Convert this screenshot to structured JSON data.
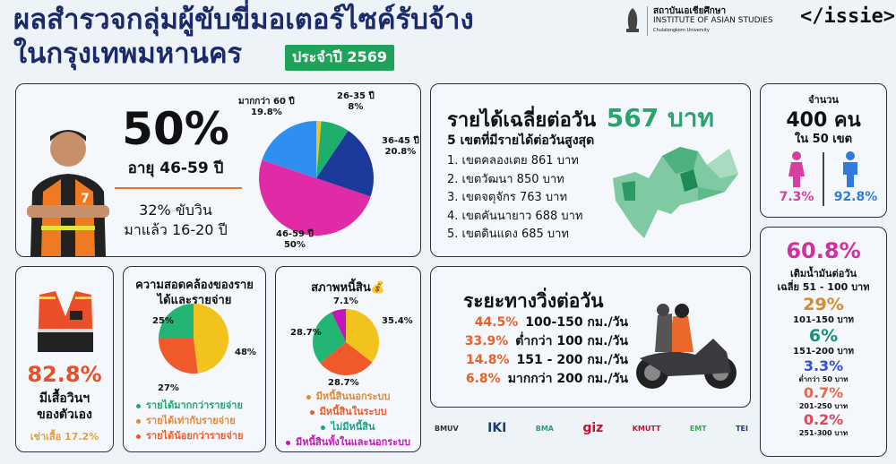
{
  "header": {
    "title_line1": "ผลสำรวจกลุ่มผู้ขับขี่มอเตอร์ไซค์รับจ้าง",
    "title_line2": "ในกรุงเทพมหานคร",
    "year_badge": "ประจำปี 2569",
    "institute_th": "สถาบันเอเชียศึกษา",
    "institute_en": "INSTITUTE OF ASIAN STUDIES",
    "institute_uni": "Chulalongkorn University",
    "brand": "</issie>"
  },
  "age_card": {
    "headline": "50%",
    "headline_sub": "อายุ 46-59 ปี",
    "experience_line1": "32% ขับวิน",
    "experience_line2": "มาแล้ว 16-20 ปี"
  },
  "income_card": {
    "title_prefix": "รายได้เฉลี่ยต่อวัน",
    "title_value": "567 บาท",
    "subtitle": "5 เขตที่มีรายได้ต่อวันสูงสุด",
    "districts": [
      "1.  เขตคลองเตย 861 บาท",
      "2.  เขตวัฒนา 850 บาท",
      "3.  เขตจตุจักร 763 บาท",
      "4.  เขตคันนายาว 688 บาท",
      "5.  เขตดินแดง 685 บาท"
    ]
  },
  "sample_card": {
    "label": "จำนวน",
    "count": "400 คน",
    "districts": "ใน 50 เขต",
    "female_pct": "7.3%",
    "male_pct": "92.8%",
    "female_color": "#d63fa0",
    "male_color": "#2f7be0"
  },
  "fuel_card": {
    "main_pct": "60.8%",
    "main_line1": "เติมน้ำมันต่อวัน",
    "main_line2": "เฉลี่ย 51 - 100 บาท",
    "items": [
      {
        "pct": "29%",
        "label": "101-150 บาท",
        "color": "#d58a2e"
      },
      {
        "pct": "6%",
        "label": "151-200 บาท",
        "color": "#18907a"
      },
      {
        "pct": "3.3%",
        "label": "ต่ำกว่า 50 บาท",
        "color": "#3552d6"
      },
      {
        "pct": "0.7%",
        "label": "201-250 บาท",
        "color": "#e8694a"
      },
      {
        "pct": "0.2%",
        "label": "251-300 บาท",
        "color": "#e04555"
      }
    ]
  },
  "vest_card": {
    "pct": "82.8%",
    "line1": "มีเสื้อวินฯ",
    "line2": "ของตัวเอง",
    "rent": "เช่าเสื้อ 17.2%"
  },
  "distance_card": {
    "title": "ระยะทางวิ่งต่อวัน",
    "rows": [
      {
        "pct": "44.5%",
        "label": "100-150 กม./วัน"
      },
      {
        "pct": "33.9%",
        "label": "ต่ำกว่า 100 กม./วัน"
      },
      {
        "pct": "14.8%",
        "label": "151 - 200 กม./วัน"
      },
      {
        "pct": "6.8%",
        "label": "มากกว่า 200 กม./วัน"
      }
    ]
  },
  "partners": [
    "BMUV",
    "IKI",
    "BMA",
    "giz",
    "KMUTT",
    "EMT",
    "TEI"
  ],
  "chart_data": [
    {
      "type": "pie",
      "title": "",
      "categories": [
        "",
        "26-35 ปี",
        "36-45 ปี",
        "46-59 ปี",
        "มากกว่า 60 ปี"
      ],
      "values": [
        1.4,
        8,
        20.8,
        50,
        19.8
      ],
      "labels": [
        "",
        "8%",
        "20.8%",
        "50%",
        "19.8%"
      ],
      "colors": [
        "#f2c31c",
        "#1fae6b",
        "#1c3a9c",
        "#e02aa6",
        "#2e8ff0"
      ]
    },
    {
      "type": "pie",
      "title": "ความสอดคล้องของรายได้และรายจ่าย",
      "categories": [
        "รายได้มากกว่ารายจ่าย",
        "รายได้เท่ากับรายจ่าย",
        "รายได้น้อยกว่ารายจ่าย"
      ],
      "values": [
        25,
        48,
        27
      ],
      "labels": [
        "25%",
        "48%",
        "27%"
      ],
      "colors": [
        "#22b573",
        "#f2c31c",
        "#f05a2a"
      ],
      "legend_colors": [
        "#22a571",
        "#e0893a",
        "#f05a2a"
      ],
      "legend": "bottom"
    },
    {
      "type": "pie",
      "title": "สภาพหนี้สิน",
      "categories": [
        "มีหนี้สินนอกระบบ",
        "มีหนี้สินในระบบ",
        "ไม่มีหนี้สิน",
        "มีหนี้สินทั้งในและนอกระบบ"
      ],
      "values": [
        35.4,
        28.7,
        28.7,
        7.1
      ],
      "labels": [
        "35.4%",
        "28.7%",
        "28.7%",
        "7.1%"
      ],
      "colors": [
        "#f2c31c",
        "#f05a2a",
        "#22b573",
        "#c415b8"
      ],
      "legend_colors": [
        "#e0893a",
        "#f05a2a",
        "#1aa58a",
        "#c415b8"
      ],
      "legend": "bottom"
    }
  ]
}
